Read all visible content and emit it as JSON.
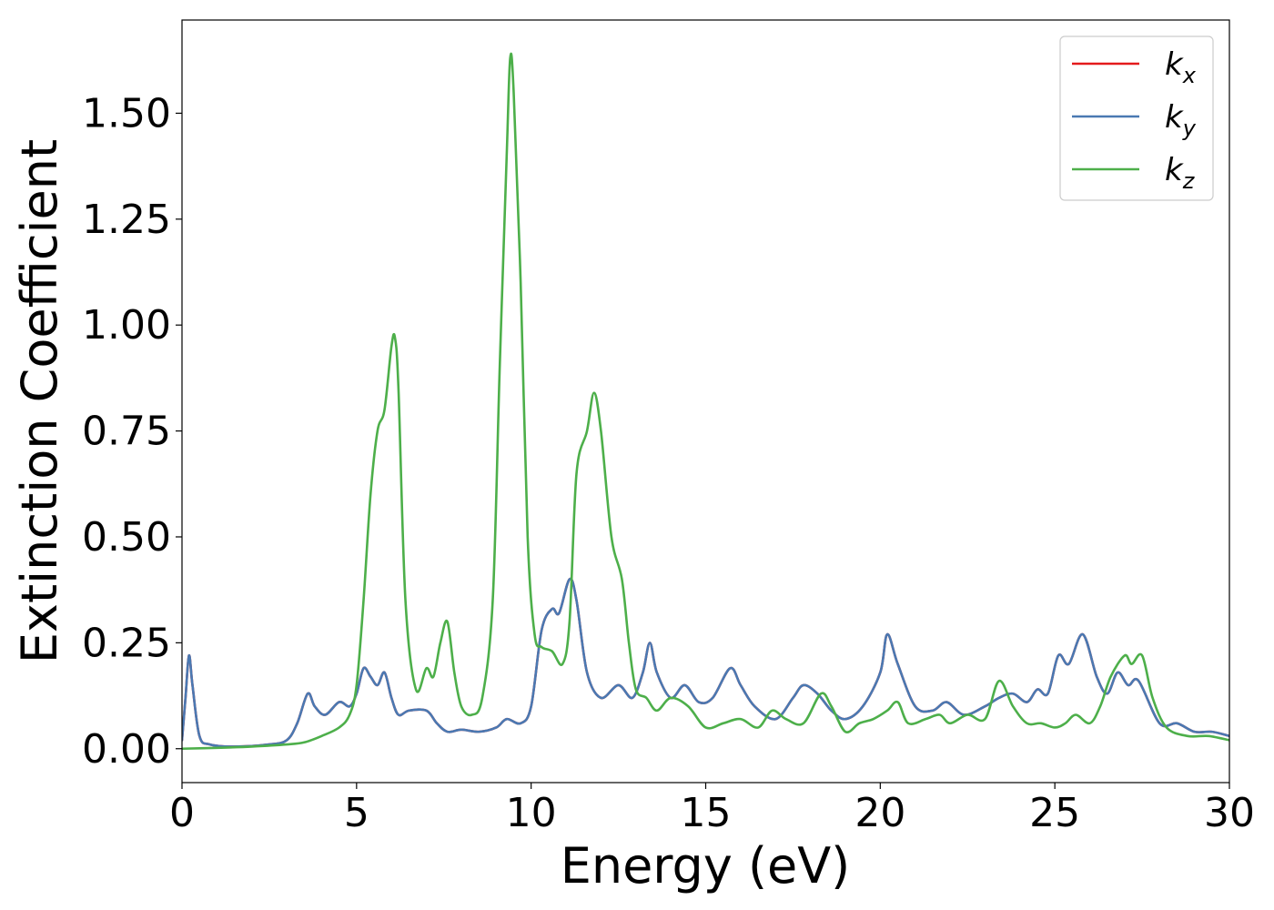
{
  "chart_data": {
    "type": "line",
    "title": "",
    "xlabel": "Energy (eV)",
    "ylabel": "Extinction Coefficient",
    "xlim": [
      0,
      30
    ],
    "ylim": [
      -0.08,
      1.72
    ],
    "xticks": [
      0,
      5,
      10,
      15,
      20,
      25,
      30
    ],
    "xtick_labels": [
      "0",
      "5",
      "10",
      "15",
      "20",
      "25",
      "30"
    ],
    "yticks": [
      0.0,
      0.25,
      0.5,
      0.75,
      1.0,
      1.25,
      1.5
    ],
    "ytick_labels": [
      "0.00",
      "0.25",
      "0.50",
      "0.75",
      "1.00",
      "1.25",
      "1.50"
    ],
    "grid": false,
    "legend_position": "top-right",
    "series": [
      {
        "name": "k_x",
        "label_base": "k",
        "label_sub": "x",
        "color": "#e41a1c",
        "x": [
          0.0,
          0.1,
          0.2,
          0.3,
          0.5,
          0.8,
          1.5,
          2.5,
          3.0,
          3.3,
          3.6,
          3.8,
          4.1,
          4.5,
          4.8,
          5.0,
          5.2,
          5.4,
          5.6,
          5.8,
          6.0,
          6.2,
          6.5,
          7.0,
          7.3,
          7.6,
          8.0,
          8.5,
          9.0,
          9.3,
          9.7,
          10.0,
          10.3,
          10.6,
          10.8,
          11.1,
          11.3,
          11.6,
          12.0,
          12.5,
          12.9,
          13.2,
          13.4,
          13.6,
          14.0,
          14.4,
          14.8,
          15.2,
          15.7,
          16.0,
          16.4,
          17.0,
          17.5,
          17.8,
          18.2,
          18.6,
          19.0,
          19.5,
          20.0,
          20.2,
          20.5,
          21.0,
          21.5,
          21.9,
          22.4,
          23.0,
          23.4,
          23.8,
          24.2,
          24.5,
          24.8,
          25.1,
          25.4,
          25.8,
          26.2,
          26.5,
          26.8,
          27.1,
          27.4,
          28.0,
          28.5,
          29.0,
          29.5,
          30.0
        ],
        "values": [
          0.02,
          0.12,
          0.22,
          0.15,
          0.03,
          0.01,
          0.005,
          0.01,
          0.02,
          0.06,
          0.13,
          0.1,
          0.08,
          0.11,
          0.1,
          0.13,
          0.19,
          0.17,
          0.15,
          0.18,
          0.12,
          0.08,
          0.09,
          0.09,
          0.06,
          0.04,
          0.045,
          0.04,
          0.05,
          0.07,
          0.06,
          0.1,
          0.28,
          0.33,
          0.32,
          0.4,
          0.35,
          0.18,
          0.12,
          0.15,
          0.12,
          0.18,
          0.25,
          0.18,
          0.12,
          0.15,
          0.11,
          0.12,
          0.19,
          0.15,
          0.1,
          0.07,
          0.12,
          0.15,
          0.13,
          0.09,
          0.07,
          0.1,
          0.18,
          0.27,
          0.2,
          0.1,
          0.09,
          0.11,
          0.08,
          0.1,
          0.12,
          0.13,
          0.11,
          0.14,
          0.13,
          0.22,
          0.2,
          0.27,
          0.17,
          0.13,
          0.18,
          0.15,
          0.16,
          0.06,
          0.06,
          0.04,
          0.04,
          0.03
        ]
      },
      {
        "name": "k_y",
        "label_base": "k",
        "label_sub": "y",
        "color": "#4a79b2",
        "x": [
          0.0,
          0.1,
          0.2,
          0.3,
          0.5,
          0.8,
          1.5,
          2.5,
          3.0,
          3.3,
          3.6,
          3.8,
          4.1,
          4.5,
          4.8,
          5.0,
          5.2,
          5.4,
          5.6,
          5.8,
          6.0,
          6.2,
          6.5,
          7.0,
          7.3,
          7.6,
          8.0,
          8.5,
          9.0,
          9.3,
          9.7,
          10.0,
          10.3,
          10.6,
          10.8,
          11.1,
          11.3,
          11.6,
          12.0,
          12.5,
          12.9,
          13.2,
          13.4,
          13.6,
          14.0,
          14.4,
          14.8,
          15.2,
          15.7,
          16.0,
          16.4,
          17.0,
          17.5,
          17.8,
          18.2,
          18.6,
          19.0,
          19.5,
          20.0,
          20.2,
          20.5,
          21.0,
          21.5,
          21.9,
          22.4,
          23.0,
          23.4,
          23.8,
          24.2,
          24.5,
          24.8,
          25.1,
          25.4,
          25.8,
          26.2,
          26.5,
          26.8,
          27.1,
          27.4,
          28.0,
          28.5,
          29.0,
          29.5,
          30.0
        ],
        "values": [
          0.02,
          0.12,
          0.22,
          0.15,
          0.03,
          0.01,
          0.005,
          0.01,
          0.02,
          0.06,
          0.13,
          0.1,
          0.08,
          0.11,
          0.1,
          0.13,
          0.19,
          0.17,
          0.15,
          0.18,
          0.12,
          0.08,
          0.09,
          0.09,
          0.06,
          0.04,
          0.045,
          0.04,
          0.05,
          0.07,
          0.06,
          0.1,
          0.28,
          0.33,
          0.32,
          0.4,
          0.35,
          0.18,
          0.12,
          0.15,
          0.12,
          0.18,
          0.25,
          0.18,
          0.12,
          0.15,
          0.11,
          0.12,
          0.19,
          0.15,
          0.1,
          0.07,
          0.12,
          0.15,
          0.13,
          0.09,
          0.07,
          0.1,
          0.18,
          0.27,
          0.2,
          0.1,
          0.09,
          0.11,
          0.08,
          0.1,
          0.12,
          0.13,
          0.11,
          0.14,
          0.13,
          0.22,
          0.2,
          0.27,
          0.17,
          0.13,
          0.18,
          0.15,
          0.16,
          0.06,
          0.06,
          0.04,
          0.04,
          0.03
        ]
      },
      {
        "name": "k_z",
        "label_base": "k",
        "label_sub": "z",
        "color": "#4daf4a",
        "x": [
          0.0,
          1.0,
          2.0,
          3.0,
          3.5,
          4.0,
          4.5,
          4.8,
          5.0,
          5.2,
          5.4,
          5.6,
          5.8,
          6.0,
          6.1,
          6.2,
          6.4,
          6.7,
          7.0,
          7.2,
          7.4,
          7.6,
          7.8,
          8.0,
          8.3,
          8.6,
          8.9,
          9.1,
          9.3,
          9.4,
          9.5,
          9.7,
          9.9,
          10.1,
          10.3,
          10.6,
          10.9,
          11.1,
          11.3,
          11.6,
          11.8,
          12.0,
          12.3,
          12.6,
          12.8,
          13.0,
          13.3,
          13.6,
          14.0,
          14.5,
          15.0,
          15.5,
          16.0,
          16.5,
          16.9,
          17.3,
          17.8,
          18.3,
          18.6,
          19.0,
          19.4,
          19.8,
          20.2,
          20.5,
          20.8,
          21.3,
          21.7,
          22.0,
          22.5,
          23.0,
          23.4,
          23.8,
          24.2,
          24.6,
          25.0,
          25.3,
          25.6,
          26.0,
          26.3,
          26.6,
          27.0,
          27.2,
          27.5,
          27.8,
          28.2,
          28.8,
          29.4,
          30.0
        ],
        "values": [
          0.0,
          0.002,
          0.005,
          0.01,
          0.015,
          0.03,
          0.05,
          0.08,
          0.15,
          0.35,
          0.6,
          0.75,
          0.8,
          0.95,
          0.97,
          0.85,
          0.35,
          0.14,
          0.19,
          0.17,
          0.25,
          0.3,
          0.18,
          0.1,
          0.08,
          0.12,
          0.35,
          0.9,
          1.4,
          1.63,
          1.55,
          1.1,
          0.5,
          0.27,
          0.24,
          0.23,
          0.2,
          0.3,
          0.65,
          0.75,
          0.84,
          0.75,
          0.5,
          0.4,
          0.25,
          0.14,
          0.12,
          0.09,
          0.12,
          0.1,
          0.05,
          0.06,
          0.07,
          0.05,
          0.09,
          0.07,
          0.06,
          0.13,
          0.1,
          0.04,
          0.06,
          0.07,
          0.09,
          0.11,
          0.06,
          0.07,
          0.08,
          0.06,
          0.08,
          0.07,
          0.16,
          0.1,
          0.06,
          0.06,
          0.05,
          0.06,
          0.08,
          0.06,
          0.1,
          0.17,
          0.22,
          0.2,
          0.22,
          0.12,
          0.05,
          0.03,
          0.03,
          0.02
        ]
      }
    ]
  }
}
